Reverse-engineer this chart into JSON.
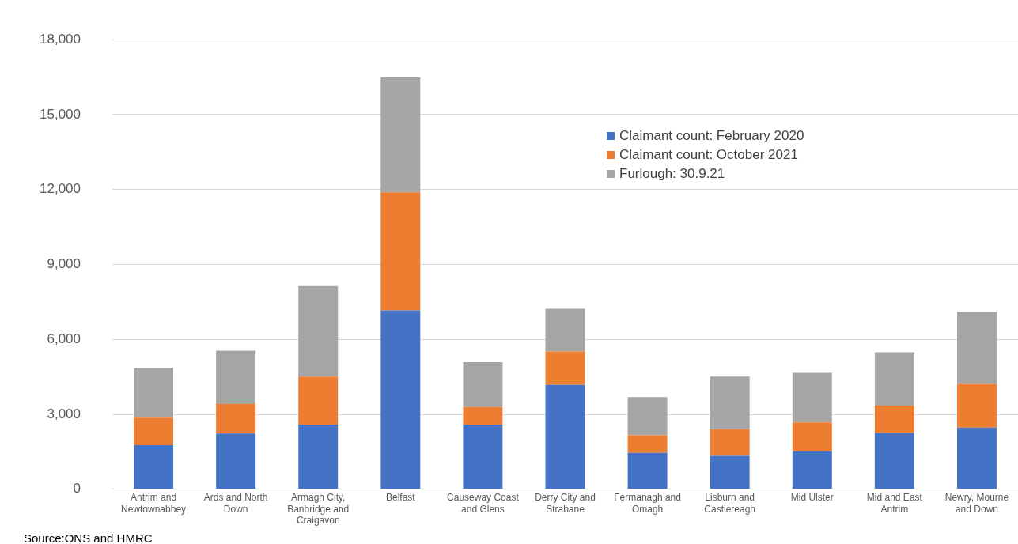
{
  "chart_data": {
    "type": "bar",
    "stacked": true,
    "categories": [
      "Antrim and Newtownabbey",
      "Ards and North Down",
      "Armagh City, Banbridge and Craigavon",
      "Belfast",
      "Causeway Coast and Glens",
      "Derry City and Strabane",
      "Fermanagh and Omagh",
      "Lisburn and Castlereagh",
      "Mid Ulster",
      "Mid and East Antrim",
      "Newry, Mourne and Down"
    ],
    "series": [
      {
        "name": "Claimant count: February 2020",
        "color": "#4472c4",
        "values": [
          1770,
          2230,
          2590,
          7160,
          2590,
          4180,
          1460,
          1340,
          1520,
          2260,
          2470
        ]
      },
      {
        "name": "Claimant count: October 2021",
        "color": "#ed7d31",
        "values": [
          1100,
          1180,
          1920,
          4730,
          700,
          1340,
          700,
          1070,
          1160,
          1090,
          1740
        ]
      },
      {
        "name": "Furlough: 30.9.21",
        "color": "#a5a5a5",
        "values": [
          1980,
          2140,
          3630,
          4600,
          1800,
          1710,
          1530,
          2100,
          1980,
          2140,
          2890
        ]
      }
    ],
    "ylim": [
      0,
      18000
    ],
    "yticks": [
      {
        "value": 0,
        "label": "0"
      },
      {
        "value": 3000,
        "label": "3,000"
      },
      {
        "value": 6000,
        "label": "6,000"
      },
      {
        "value": 9000,
        "label": "9,000"
      },
      {
        "value": 12000,
        "label": "12,000"
      },
      {
        "value": 15000,
        "label": "15,000"
      },
      {
        "value": 18000,
        "label": "18,000"
      }
    ],
    "grid": "y",
    "legend": "top right",
    "annotations": [
      "Source:ONS and HMRC"
    ]
  }
}
